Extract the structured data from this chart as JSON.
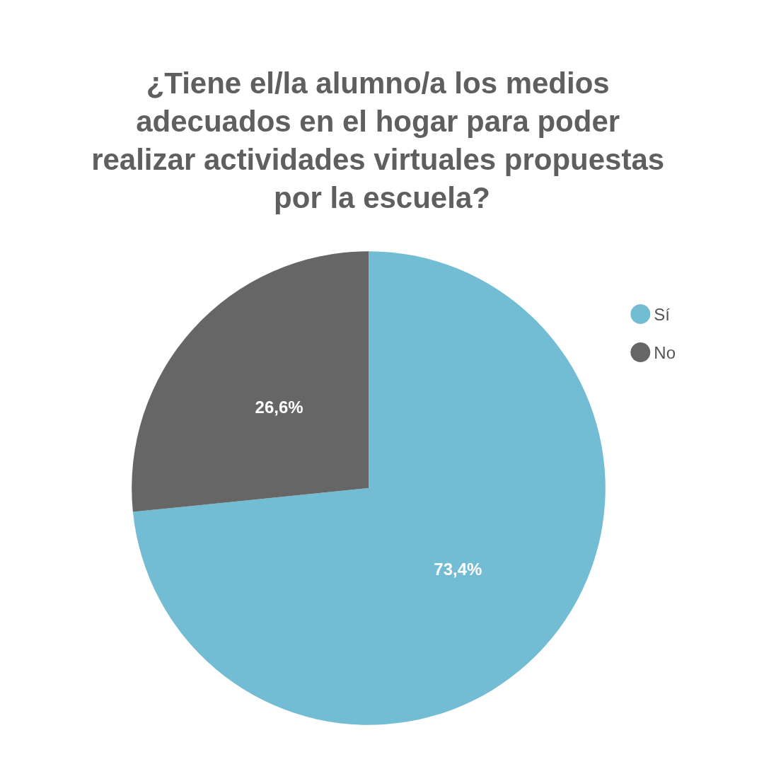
{
  "chart_data": {
    "type": "pie",
    "title": "¿Tiene el/la alumno/a los medios adecuados en el hogar para poder realizar actividades virtuales propuestas por la escuela?",
    "categories": [
      "Sí",
      "No"
    ],
    "values": [
      73.4,
      26.6
    ],
    "colors": [
      "#72bcd4",
      "#666666"
    ],
    "value_labels": [
      "73,4%",
      "26,6%"
    ],
    "legend": "top right"
  }
}
